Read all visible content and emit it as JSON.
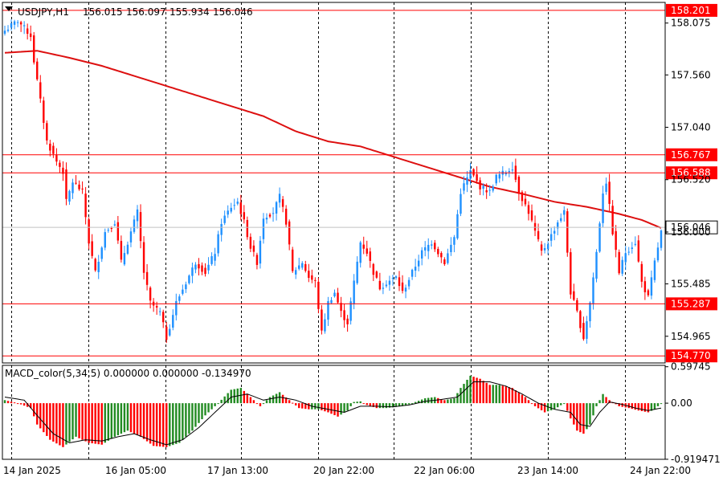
{
  "header": {
    "symbol": "USDJPY,H1",
    "open": "156.015",
    "high": "156.097",
    "low": "155.934",
    "close": "156.046"
  },
  "indicator": {
    "title": "MACD_color(5,34,5) 0.000000 0.000000 -0.134970"
  },
  "colors": {
    "background": "#ffffff",
    "bull": "#1e90ff",
    "bear": "#ff0000",
    "ma": "#dd1010",
    "level": "#ff0000",
    "hist_up": "#228b22",
    "hist_down": "#ff0000",
    "signal": "#000000",
    "grid": "#000000",
    "bid_line": "#c0c0c0"
  },
  "chart_data": [
    {
      "type": "candlestick",
      "title": "USDJPY,H1",
      "ylim": [
        154.7,
        158.28
      ],
      "y_ticks": [
        "158.075",
        "157.560",
        "157.040",
        "156.520",
        "156.000",
        "155.485",
        "154.965"
      ],
      "x_ticks": [
        "14 Jan 2025",
        "16 Jan 05:00",
        "17 Jan 13:00",
        "20 Jan 22:00",
        "22 Jan 06:00",
        "23 Jan 14:00",
        "24 Jan 22:00"
      ],
      "horizontal_levels": [
        "158.201",
        "156.767",
        "156.588",
        "155.287",
        "154.770"
      ],
      "current_price": "156.046",
      "close_anchors": [
        [
          0,
          158.0
        ],
        [
          4,
          158.1
        ],
        [
          8,
          157.95
        ],
        [
          9,
          157.7
        ],
        [
          11,
          157.3
        ],
        [
          13,
          156.9
        ],
        [
          16,
          156.7
        ],
        [
          18,
          156.6
        ],
        [
          19,
          156.3
        ],
        [
          21,
          156.5
        ],
        [
          24,
          156.4
        ],
        [
          26,
          155.9
        ],
        [
          28,
          155.6
        ],
        [
          31,
          156.0
        ],
        [
          34,
          156.1
        ],
        [
          36,
          155.7
        ],
        [
          38,
          155.9
        ],
        [
          41,
          156.2
        ],
        [
          43,
          155.6
        ],
        [
          45,
          155.3
        ],
        [
          48,
          155.2
        ],
        [
          50,
          154.95
        ],
        [
          53,
          155.3
        ],
        [
          56,
          155.5
        ],
        [
          59,
          155.7
        ],
        [
          62,
          155.6
        ],
        [
          65,
          155.8
        ],
        [
          67,
          156.1
        ],
        [
          70,
          156.25
        ],
        [
          72,
          156.3
        ],
        [
          74,
          156.1
        ],
        [
          76,
          155.85
        ],
        [
          78,
          155.7
        ],
        [
          80,
          156.15
        ],
        [
          83,
          156.2
        ],
        [
          85,
          156.35
        ],
        [
          87,
          156.1
        ],
        [
          89,
          155.6
        ],
        [
          92,
          155.7
        ],
        [
          94,
          155.55
        ],
        [
          96,
          155.5
        ],
        [
          98,
          155.0
        ],
        [
          100,
          155.3
        ],
        [
          102,
          155.4
        ],
        [
          104,
          155.2
        ],
        [
          106,
          155.1
        ],
        [
          108,
          155.5
        ],
        [
          110,
          155.9
        ],
        [
          112,
          155.8
        ],
        [
          114,
          155.6
        ],
        [
          116,
          155.45
        ],
        [
          118,
          155.5
        ],
        [
          121,
          155.55
        ],
        [
          123,
          155.4
        ],
        [
          126,
          155.6
        ],
        [
          129,
          155.8
        ],
        [
          132,
          155.9
        ],
        [
          134,
          155.8
        ],
        [
          136,
          155.7
        ],
        [
          139,
          155.95
        ],
        [
          141,
          156.4
        ],
        [
          144,
          156.6
        ],
        [
          147,
          156.45
        ],
        [
          150,
          156.4
        ],
        [
          152,
          156.55
        ],
        [
          155,
          156.6
        ],
        [
          157,
          156.65
        ],
        [
          159,
          156.4
        ],
        [
          162,
          156.2
        ],
        [
          164,
          156.0
        ],
        [
          166,
          155.8
        ],
        [
          168,
          155.9
        ],
        [
          171,
          156.1
        ],
        [
          173,
          156.2
        ],
        [
          175,
          155.4
        ],
        [
          177,
          155.2
        ],
        [
          179,
          154.95
        ],
        [
          181,
          155.3
        ],
        [
          183,
          155.8
        ],
        [
          185,
          156.4
        ],
        [
          186,
          156.5
        ],
        [
          188,
          156.0
        ],
        [
          190,
          155.6
        ],
        [
          192,
          155.8
        ],
        [
          195,
          155.9
        ],
        [
          197,
          155.5
        ],
        [
          199,
          155.35
        ],
        [
          201,
          155.7
        ],
        [
          203,
          156.0
        ]
      ],
      "moving_average": [
        [
          0,
          157.78
        ],
        [
          10,
          157.8
        ],
        [
          20,
          157.73
        ],
        [
          30,
          157.65
        ],
        [
          40,
          157.55
        ],
        [
          50,
          157.45
        ],
        [
          60,
          157.35
        ],
        [
          70,
          157.25
        ],
        [
          80,
          157.15
        ],
        [
          90,
          157.0
        ],
        [
          100,
          156.9
        ],
        [
          110,
          156.85
        ],
        [
          120,
          156.75
        ],
        [
          130,
          156.65
        ],
        [
          140,
          156.55
        ],
        [
          150,
          156.45
        ],
        [
          160,
          156.38
        ],
        [
          170,
          156.3
        ],
        [
          180,
          156.25
        ],
        [
          190,
          156.18
        ],
        [
          197,
          156.12
        ],
        [
          203,
          156.04
        ]
      ]
    },
    {
      "type": "bar",
      "title": "MACD_color(5,34,5)",
      "ylim": [
        -0.92,
        0.62
      ],
      "y_ticks": [
        "0.59745",
        "0.00",
        "-0.919471"
      ],
      "hist_anchors": [
        [
          0,
          0.05
        ],
        [
          4,
          0.0
        ],
        [
          8,
          -0.08
        ],
        [
          10,
          -0.35
        ],
        [
          14,
          -0.6
        ],
        [
          18,
          -0.72
        ],
        [
          22,
          -0.55
        ],
        [
          26,
          -0.65
        ],
        [
          30,
          -0.68
        ],
        [
          34,
          -0.55
        ],
        [
          38,
          -0.45
        ],
        [
          42,
          -0.55
        ],
        [
          46,
          -0.7
        ],
        [
          50,
          -0.72
        ],
        [
          54,
          -0.65
        ],
        [
          58,
          -0.45
        ],
        [
          62,
          -0.2
        ],
        [
          66,
          0.0
        ],
        [
          70,
          0.22
        ],
        [
          73,
          0.25
        ],
        [
          76,
          0.1
        ],
        [
          79,
          -0.05
        ],
        [
          82,
          0.1
        ],
        [
          85,
          0.18
        ],
        [
          88,
          0.05
        ],
        [
          91,
          -0.08
        ],
        [
          94,
          -0.1
        ],
        [
          97,
          -0.1
        ],
        [
          100,
          -0.15
        ],
        [
          103,
          -0.22
        ],
        [
          106,
          -0.12
        ],
        [
          108,
          0.02
        ],
        [
          110,
          0.03
        ],
        [
          112,
          -0.03
        ],
        [
          115,
          -0.08
        ],
        [
          118,
          -0.08
        ],
        [
          121,
          -0.06
        ],
        [
          124,
          -0.04
        ],
        [
          127,
          0.02
        ],
        [
          130,
          0.08
        ],
        [
          133,
          0.1
        ],
        [
          136,
          0.05
        ],
        [
          139,
          0.08
        ],
        [
          141,
          0.25
        ],
        [
          144,
          0.45
        ],
        [
          147,
          0.4
        ],
        [
          150,
          0.3
        ],
        [
          153,
          0.3
        ],
        [
          157,
          0.25
        ],
        [
          161,
          0.1
        ],
        [
          164,
          -0.05
        ],
        [
          167,
          -0.15
        ],
        [
          170,
          -0.1
        ],
        [
          173,
          0.0
        ],
        [
          175,
          -0.25
        ],
        [
          177,
          -0.45
        ],
        [
          179,
          -0.5
        ],
        [
          181,
          -0.35
        ],
        [
          183,
          -0.05
        ],
        [
          185,
          0.15
        ],
        [
          187,
          0.05
        ],
        [
          190,
          -0.05
        ],
        [
          193,
          -0.08
        ],
        [
          196,
          -0.12
        ],
        [
          199,
          -0.15
        ],
        [
          201,
          -0.1
        ],
        [
          203,
          0.0
        ]
      ],
      "signal_anchors": [
        [
          0,
          0.1
        ],
        [
          6,
          0.05
        ],
        [
          10,
          -0.2
        ],
        [
          15,
          -0.5
        ],
        [
          20,
          -0.65
        ],
        [
          25,
          -0.6
        ],
        [
          30,
          -0.62
        ],
        [
          35,
          -0.55
        ],
        [
          40,
          -0.5
        ],
        [
          45,
          -0.6
        ],
        [
          50,
          -0.68
        ],
        [
          55,
          -0.6
        ],
        [
          60,
          -0.4
        ],
        [
          65,
          -0.15
        ],
        [
          70,
          0.1
        ],
        [
          75,
          0.15
        ],
        [
          80,
          0.05
        ],
        [
          85,
          0.1
        ],
        [
          90,
          0.05
        ],
        [
          95,
          -0.05
        ],
        [
          100,
          -0.1
        ],
        [
          105,
          -0.15
        ],
        [
          110,
          -0.05
        ],
        [
          115,
          -0.05
        ],
        [
          120,
          -0.06
        ],
        [
          125,
          -0.03
        ],
        [
          130,
          0.03
        ],
        [
          135,
          0.06
        ],
        [
          140,
          0.1
        ],
        [
          145,
          0.35
        ],
        [
          150,
          0.35
        ],
        [
          155,
          0.28
        ],
        [
          160,
          0.15
        ],
        [
          165,
          0.0
        ],
        [
          170,
          -0.1
        ],
        [
          175,
          -0.15
        ],
        [
          178,
          -0.35
        ],
        [
          181,
          -0.38
        ],
        [
          184,
          -0.15
        ],
        [
          187,
          0.02
        ],
        [
          191,
          -0.02
        ],
        [
          195,
          -0.08
        ],
        [
          199,
          -0.12
        ],
        [
          203,
          -0.08
        ]
      ]
    }
  ]
}
